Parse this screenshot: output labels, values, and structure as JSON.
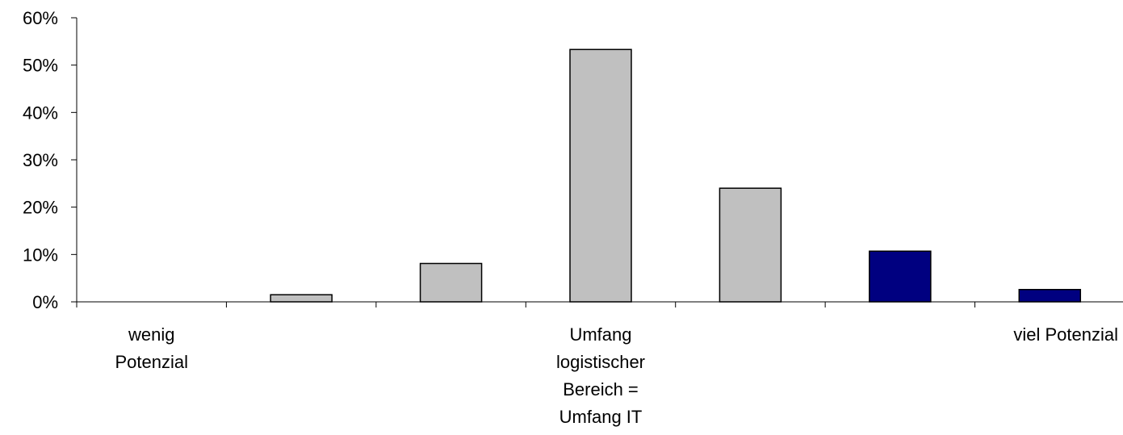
{
  "chart_data": {
    "type": "bar",
    "categories": [
      "1",
      "2",
      "3",
      "4",
      "5",
      "6",
      "7"
    ],
    "category_labels": [
      [
        "wenig",
        "Potenzial"
      ],
      [],
      [],
      [
        "Umfang",
        "logistischer",
        "Bereich =",
        "Umfang IT"
      ],
      [],
      [],
      [
        "viel Potenzial"
      ]
    ],
    "values": [
      0,
      1.5,
      8.1,
      53.3,
      24.0,
      10.7,
      2.6
    ],
    "bar_colors": [
      "#C0C0C0",
      "#C0C0C0",
      "#C0C0C0",
      "#C0C0C0",
      "#C0C0C0",
      "#000080",
      "#000080"
    ],
    "y_ticks": [
      "0%",
      "10%",
      "20%",
      "30%",
      "40%",
      "50%",
      "60%"
    ],
    "ylim": [
      0,
      60
    ],
    "grid": false,
    "legend": "none",
    "title": "",
    "xlabel": "",
    "ylabel": ""
  }
}
